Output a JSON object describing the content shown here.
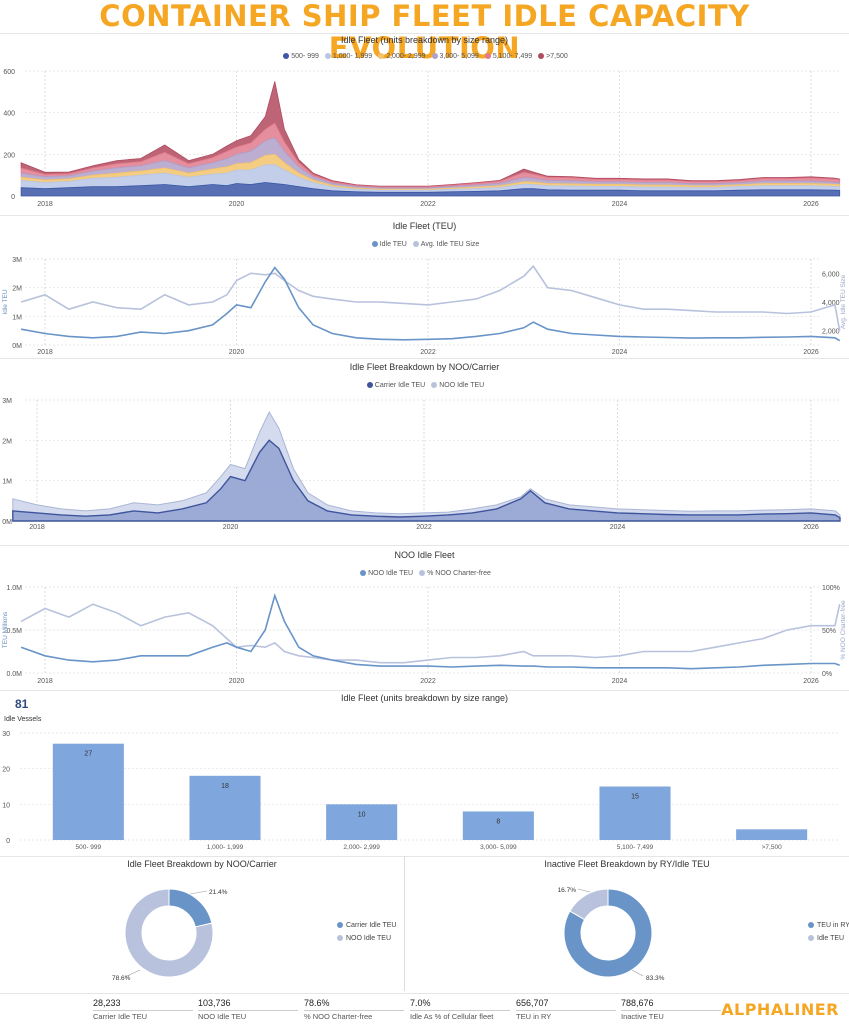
{
  "page": {
    "title": "CONTAINER SHIP FLEET IDLE CAPACITY EVOLUTION",
    "logo": "ALPHALINER"
  },
  "colors": {
    "s500": "#3b57a6",
    "s1000": "#b8c6e6",
    "s2000": "#f2c46d",
    "s3000": "#b0a0c8",
    "s5000": "#e07a8c",
    "s7500": "#b24a5f",
    "lightline": "#b8c2dd",
    "darkline": "#6894c8",
    "bar": "#7fa7dd",
    "orange": "#f5a623"
  },
  "chart_data": [
    {
      "id": "chart1",
      "type": "area",
      "title": "Idle Fleet (units breakdown by size range)",
      "xticks": [
        "2018",
        "2020",
        "2022",
        "2024",
        "2026"
      ],
      "yticks": [
        "0",
        "200",
        "400",
        "600"
      ],
      "ylim": [
        0,
        600
      ],
      "x": [
        2017.75,
        2018.0,
        2018.25,
        2018.5,
        2018.75,
        2019.0,
        2019.25,
        2019.5,
        2019.75,
        2019.9,
        2020.0,
        2020.15,
        2020.3,
        2020.4,
        2020.5,
        2020.65,
        2020.8,
        2021.0,
        2021.25,
        2021.5,
        2021.75,
        2022.0,
        2022.25,
        2022.5,
        2022.75,
        2023.0,
        2023.1,
        2023.25,
        2023.5,
        2023.75,
        2024.0,
        2024.25,
        2024.5,
        2024.75,
        2025.0,
        2025.25,
        2025.5,
        2025.75,
        2026.0,
        2026.25,
        2026.3
      ],
      "series": [
        {
          "name": "500- 999",
          "values": [
            40,
            35,
            40,
            45,
            45,
            50,
            55,
            45,
            55,
            50,
            60,
            55,
            65,
            60,
            55,
            45,
            35,
            25,
            20,
            18,
            18,
            18,
            20,
            22,
            25,
            35,
            35,
            30,
            28,
            28,
            28,
            25,
            25,
            25,
            25,
            28,
            30,
            30,
            30,
            28,
            27
          ]
        },
        {
          "name": "1,000- 1,999",
          "values": [
            35,
            30,
            30,
            40,
            45,
            50,
            55,
            45,
            50,
            60,
            65,
            70,
            85,
            90,
            70,
            45,
            30,
            18,
            12,
            10,
            10,
            10,
            12,
            14,
            16,
            22,
            20,
            20,
            20,
            18,
            18,
            18,
            18,
            16,
            16,
            18,
            20,
            20,
            20,
            18,
            18
          ]
        },
        {
          "name": "2,000- 2,999",
          "values": [
            15,
            12,
            12,
            15,
            20,
            20,
            25,
            20,
            25,
            30,
            30,
            35,
            45,
            50,
            35,
            20,
            12,
            8,
            6,
            5,
            5,
            5,
            6,
            7,
            8,
            12,
            12,
            10,
            10,
            10,
            10,
            10,
            10,
            8,
            8,
            8,
            10,
            10,
            10,
            10,
            10
          ]
        },
        {
          "name": "3,000- 5,099",
          "values": [
            20,
            15,
            15,
            20,
            25,
            25,
            35,
            25,
            30,
            40,
            45,
            55,
            70,
            80,
            55,
            30,
            15,
            10,
            8,
            6,
            6,
            6,
            8,
            10,
            12,
            20,
            18,
            15,
            15,
            12,
            12,
            12,
            12,
            10,
            10,
            10,
            12,
            12,
            12,
            10,
            8
          ]
        },
        {
          "name": "5,100- 7,499",
          "values": [
            25,
            12,
            10,
            15,
            20,
            20,
            40,
            20,
            25,
            35,
            35,
            40,
            55,
            70,
            45,
            20,
            10,
            8,
            5,
            5,
            5,
            5,
            6,
            8,
            10,
            25,
            20,
            15,
            15,
            12,
            12,
            12,
            12,
            10,
            10,
            10,
            12,
            12,
            15,
            15,
            15
          ]
        },
        {
          "name": ">7,500",
          "values": [
            25,
            10,
            8,
            10,
            15,
            15,
            35,
            15,
            15,
            25,
            30,
            35,
            60,
            200,
            60,
            15,
            8,
            5,
            3,
            3,
            3,
            3,
            3,
            3,
            4,
            15,
            10,
            5,
            5,
            5,
            5,
            5,
            5,
            5,
            5,
            5,
            5,
            5,
            5,
            5,
            3
          ]
        }
      ]
    },
    {
      "id": "chart2",
      "type": "line",
      "title": "Idle Fleet (TEU)",
      "ylabel": "Idle TEU",
      "y2label": "Avg. Idle TEU Size",
      "xticks": [
        "2018",
        "2020",
        "2022",
        "2024",
        "2026"
      ],
      "yticks": [
        "0M",
        "1M",
        "2M",
        "3M"
      ],
      "y2ticks": [
        "2,000",
        "4,000",
        "6,000"
      ],
      "ylim": [
        0,
        3000000
      ],
      "y2lim": [
        1000,
        7000
      ],
      "x": [
        2017.75,
        2018.0,
        2018.25,
        2018.5,
        2018.75,
        2019.0,
        2019.25,
        2019.5,
        2019.75,
        2019.9,
        2020.0,
        2020.15,
        2020.3,
        2020.4,
        2020.5,
        2020.65,
        2020.8,
        2021.0,
        2021.25,
        2021.5,
        2021.75,
        2022.0,
        2022.25,
        2022.5,
        2022.75,
        2023.0,
        2023.1,
        2023.25,
        2023.5,
        2023.75,
        2024.0,
        2024.25,
        2024.5,
        2024.75,
        2025.0,
        2025.25,
        2025.5,
        2025.75,
        2026.0,
        2026.25,
        2026.3
      ],
      "series": [
        {
          "name": "Idle TEU",
          "axis": "left",
          "values": [
            550000,
            400000,
            300000,
            250000,
            300000,
            450000,
            400000,
            500000,
            700000,
            1100000,
            1400000,
            1300000,
            2200000,
            2700000,
            2300000,
            1300000,
            700000,
            400000,
            250000,
            200000,
            180000,
            200000,
            220000,
            300000,
            400000,
            600000,
            800000,
            550000,
            400000,
            350000,
            300000,
            280000,
            260000,
            240000,
            250000,
            250000,
            270000,
            280000,
            300000,
            250000,
            150000
          ]
        },
        {
          "name": "Avg. Idle TEU Size",
          "axis": "right",
          "values": [
            4000,
            4500,
            3500,
            4000,
            3600,
            3500,
            4500,
            3800,
            4000,
            4500,
            5500,
            6000,
            5900,
            6000,
            5500,
            4800,
            4400,
            4200,
            4000,
            4000,
            3900,
            3800,
            4000,
            4200,
            4800,
            5800,
            6500,
            5000,
            4800,
            4300,
            3800,
            3500,
            3500,
            3400,
            3300,
            3300,
            3300,
            3200,
            3300,
            3800,
            2000
          ]
        }
      ]
    },
    {
      "id": "chart3",
      "type": "area",
      "title": "Idle Fleet Breakdown by NOO/Carrier",
      "xticks": [
        "2018",
        "2020",
        "2022",
        "2024",
        "2026"
      ],
      "yticks": [
        "0M",
        "1M",
        "2M",
        "3M"
      ],
      "ylim": [
        0,
        3000000
      ],
      "x": [
        2017.75,
        2018.0,
        2018.25,
        2018.5,
        2018.75,
        2019.0,
        2019.25,
        2019.5,
        2019.75,
        2019.9,
        2020.0,
        2020.15,
        2020.3,
        2020.4,
        2020.5,
        2020.65,
        2020.8,
        2021.0,
        2021.25,
        2021.5,
        2021.75,
        2022.0,
        2022.25,
        2022.5,
        2022.75,
        2023.0,
        2023.1,
        2023.25,
        2023.5,
        2023.75,
        2024.0,
        2024.25,
        2024.5,
        2024.75,
        2025.0,
        2025.25,
        2025.5,
        2025.75,
        2026.0,
        2026.25,
        2026.3
      ],
      "series": [
        {
          "name": "Carrier Idle TEU",
          "values": [
            250000,
            200000,
            150000,
            120000,
            150000,
            250000,
            200000,
            300000,
            450000,
            800000,
            1100000,
            1000000,
            1700000,
            2000000,
            1800000,
            1000000,
            500000,
            250000,
            150000,
            120000,
            100000,
            120000,
            150000,
            200000,
            300000,
            550000,
            750000,
            450000,
            300000,
            250000,
            200000,
            180000,
            160000,
            150000,
            150000,
            150000,
            170000,
            180000,
            200000,
            150000,
            80000
          ]
        },
        {
          "name": "NOO Idle TEU",
          "values": [
            300000,
            200000,
            150000,
            130000,
            150000,
            200000,
            200000,
            200000,
            250000,
            300000,
            300000,
            300000,
            500000,
            700000,
            500000,
            300000,
            200000,
            150000,
            100000,
            80000,
            80000,
            80000,
            70000,
            100000,
            100000,
            50000,
            50000,
            100000,
            100000,
            100000,
            100000,
            100000,
            100000,
            90000,
            100000,
            100000,
            100000,
            100000,
            100000,
            100000,
            70000
          ]
        }
      ]
    },
    {
      "id": "chart4",
      "type": "line",
      "title": "NOO Idle Fleet",
      "ylabel": "TEU Millions",
      "y2label": "% NOO Charter-free",
      "xticks": [
        "2018",
        "2020",
        "2022",
        "2024",
        "2026"
      ],
      "yticks": [
        "0.0M",
        "0.5M",
        "1.0M"
      ],
      "y2ticks": [
        "0%",
        "50%",
        "100%"
      ],
      "ylim": [
        0,
        1000000
      ],
      "y2lim": [
        0,
        100
      ],
      "x": [
        2017.75,
        2018.0,
        2018.25,
        2018.5,
        2018.75,
        2019.0,
        2019.25,
        2019.5,
        2019.75,
        2019.9,
        2020.0,
        2020.15,
        2020.3,
        2020.4,
        2020.5,
        2020.65,
        2020.8,
        2021.0,
        2021.25,
        2021.5,
        2021.75,
        2022.0,
        2022.25,
        2022.5,
        2022.75,
        2023.0,
        2023.1,
        2023.25,
        2023.5,
        2023.75,
        2024.0,
        2024.25,
        2024.5,
        2024.75,
        2025.0,
        2025.25,
        2025.5,
        2025.75,
        2026.0,
        2026.25,
        2026.3
      ],
      "series": [
        {
          "name": "NOO Idle TEU",
          "axis": "left",
          "values": [
            300000,
            200000,
            150000,
            130000,
            150000,
            200000,
            200000,
            200000,
            300000,
            350000,
            300000,
            250000,
            500000,
            900000,
            600000,
            300000,
            200000,
            150000,
            100000,
            80000,
            80000,
            80000,
            70000,
            80000,
            90000,
            80000,
            80000,
            70000,
            70000,
            60000,
            60000,
            60000,
            60000,
            50000,
            60000,
            70000,
            90000,
            100000,
            110000,
            110000,
            90000
          ]
        },
        {
          "name": "% NOO Charter-free",
          "axis": "right",
          "values": [
            60,
            75,
            65,
            80,
            70,
            55,
            65,
            70,
            55,
            40,
            30,
            32,
            30,
            35,
            25,
            20,
            18,
            15,
            15,
            12,
            12,
            15,
            18,
            18,
            20,
            25,
            20,
            20,
            20,
            18,
            20,
            25,
            25,
            25,
            30,
            35,
            40,
            50,
            55,
            55,
            80
          ]
        }
      ]
    },
    {
      "id": "chart5",
      "type": "bar",
      "title": "Idle Fleet (units breakdown by size range)",
      "kpi": "81",
      "ylabel": "Idle Vessels",
      "yticks": [
        "0",
        "10",
        "20",
        "30"
      ],
      "ylim": [
        0,
        30
      ],
      "categories": [
        "500- 999",
        "1,000- 1,999",
        "2,000- 2,999",
        "3,000- 5,099",
        "5,100- 7,499",
        ">7,500"
      ],
      "values": [
        27,
        18,
        10,
        8,
        15,
        3
      ],
      "data_labels": [
        "27",
        "18",
        "10",
        "8",
        "15",
        ""
      ]
    },
    {
      "id": "chart6",
      "type": "pie",
      "title": "Idle Fleet Breakdown by NOO/Carrier",
      "labels": [
        "Carrier Idle TEU",
        "NOO Idle TEU"
      ],
      "values": [
        21.4,
        78.6
      ],
      "data_labels": [
        "21.4%",
        "78.6%"
      ],
      "legend": "right"
    },
    {
      "id": "chart7",
      "type": "pie",
      "title": "Inactive Fleet Breakdown by RY/Idle TEU",
      "labels": [
        "TEU in RY",
        "Idle TEU"
      ],
      "values": [
        83.3,
        16.7
      ],
      "data_labels": [
        "83.3%",
        "16.7%"
      ],
      "legend": "right"
    }
  ],
  "kpis": [
    {
      "value": "28,233",
      "label": "Carrier Idle TEU"
    },
    {
      "value": "103,736",
      "label": "NOO Idle TEU"
    },
    {
      "value": "78.6%",
      "label": "% NOO Charter-free"
    },
    {
      "value": "7.0%",
      "label": "Idle As % of Cellular fleet"
    },
    {
      "value": "656,707",
      "label": "TEU in RY"
    },
    {
      "value": "788,676",
      "label": "Inactive TEU"
    }
  ]
}
